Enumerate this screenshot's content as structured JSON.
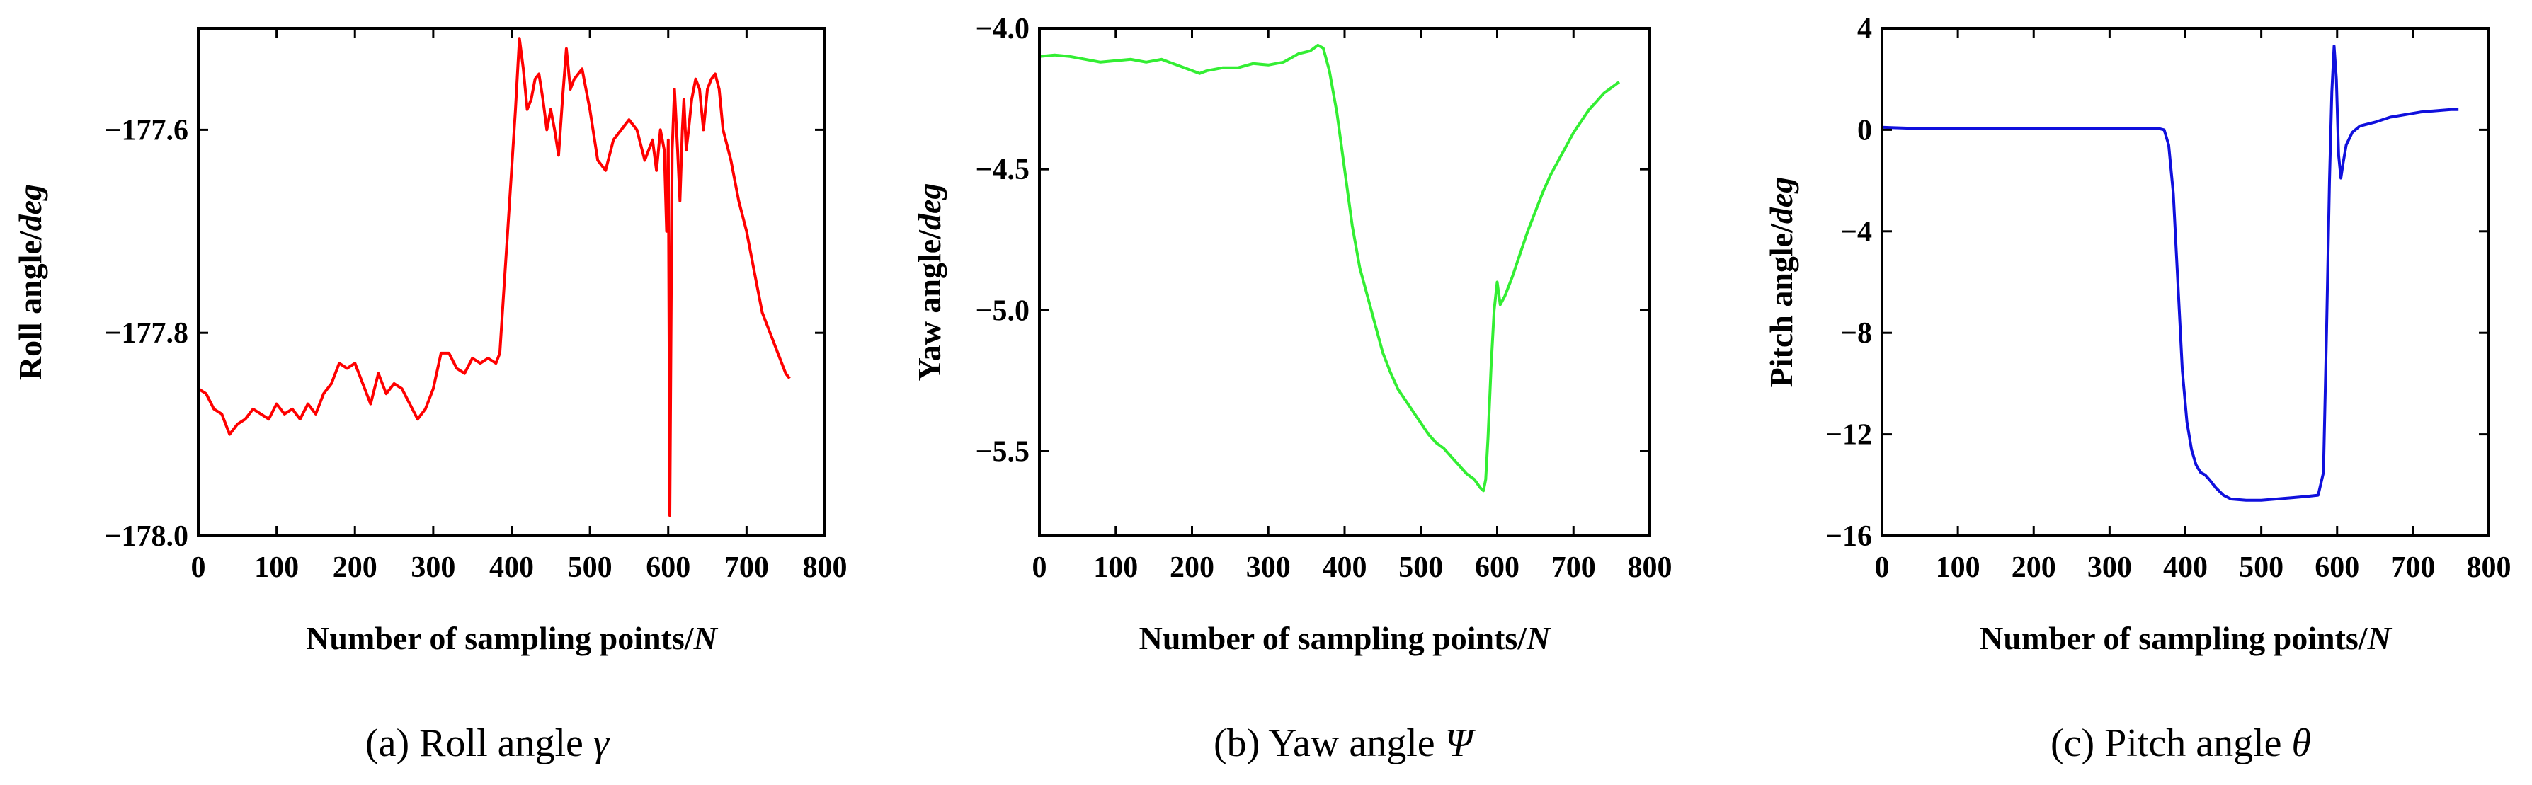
{
  "chart_data": [
    {
      "type": "line",
      "caption": {
        "prefix": "(a)  Roll angle ",
        "symbol": "γ"
      },
      "ylabel": {
        "main": "Roll angle/",
        "unit": "deg"
      },
      "xlabel": {
        "main": "Number of sampling points/",
        "unit": "N"
      },
      "xlim": [
        0,
        800
      ],
      "ylim": [
        -178.0,
        -177.5
      ],
      "xticks": [
        0,
        100,
        200,
        300,
        400,
        500,
        600,
        700,
        800
      ],
      "xtick_labels": [
        "0",
        "100",
        "200",
        "300",
        "400",
        "500",
        "600",
        "700",
        "800"
      ],
      "yticks": [
        -178.0,
        -177.8,
        -177.6
      ],
      "ytick_labels": [
        "−178.0",
        "−177.8",
        "−177.6"
      ],
      "color": "#ff0000",
      "series": [
        {
          "name": "Roll angle",
          "x": [
            0,
            10,
            20,
            30,
            40,
            50,
            60,
            70,
            80,
            90,
            100,
            110,
            120,
            130,
            140,
            150,
            160,
            170,
            180,
            190,
            200,
            210,
            220,
            230,
            240,
            250,
            260,
            270,
            280,
            290,
            300,
            310,
            320,
            330,
            340,
            350,
            360,
            370,
            380,
            385,
            390,
            395,
            400,
            405,
            410,
            415,
            420,
            425,
            430,
            435,
            440,
            445,
            450,
            455,
            460,
            465,
            470,
            475,
            480,
            490,
            500,
            510,
            520,
            530,
            540,
            550,
            560,
            570,
            580,
            585,
            590,
            595,
            598,
            600,
            602,
            605,
            608,
            612,
            615,
            618,
            620,
            623,
            626,
            630,
            635,
            640,
            645,
            650,
            655,
            660,
            665,
            670,
            680,
            690,
            700,
            710,
            720,
            730,
            740,
            750,
            755
          ],
          "values": [
            -177.855,
            -177.86,
            -177.875,
            -177.88,
            -177.9,
            -177.89,
            -177.885,
            -177.875,
            -177.88,
            -177.885,
            -177.87,
            -177.88,
            -177.875,
            -177.885,
            -177.87,
            -177.88,
            -177.86,
            -177.85,
            -177.83,
            -177.835,
            -177.83,
            -177.85,
            -177.87,
            -177.84,
            -177.86,
            -177.85,
            -177.855,
            -177.87,
            -177.885,
            -177.875,
            -177.855,
            -177.82,
            -177.82,
            -177.835,
            -177.84,
            -177.825,
            -177.83,
            -177.825,
            -177.83,
            -177.82,
            -177.76,
            -177.7,
            -177.64,
            -177.58,
            -177.51,
            -177.54,
            -177.58,
            -177.57,
            -177.55,
            -177.545,
            -177.57,
            -177.6,
            -177.58,
            -177.6,
            -177.625,
            -177.57,
            -177.52,
            -177.56,
            -177.55,
            -177.54,
            -177.58,
            -177.63,
            -177.64,
            -177.61,
            -177.6,
            -177.59,
            -177.6,
            -177.63,
            -177.61,
            -177.64,
            -177.6,
            -177.62,
            -177.7,
            -177.61,
            -177.98,
            -177.62,
            -177.56,
            -177.62,
            -177.67,
            -177.6,
            -177.57,
            -177.62,
            -177.6,
            -177.57,
            -177.55,
            -177.56,
            -177.6,
            -177.56,
            -177.55,
            -177.545,
            -177.56,
            -177.6,
            -177.63,
            -177.67,
            -177.7,
            -177.74,
            -177.78,
            -177.8,
            -177.82,
            -177.84,
            -177.845
          ]
        }
      ]
    },
    {
      "type": "line",
      "caption": {
        "prefix": "(b)  Yaw angle ",
        "symbol": "Ψ"
      },
      "ylabel": {
        "main": "Yaw angle/",
        "unit": "deg"
      },
      "xlabel": {
        "main": "Number of sampling points/",
        "unit": "N"
      },
      "xlim": [
        0,
        800
      ],
      "ylim": [
        -5.8,
        -4.0
      ],
      "xticks": [
        0,
        100,
        200,
        300,
        400,
        500,
        600,
        700,
        800
      ],
      "xtick_labels": [
        "0",
        "100",
        "200",
        "300",
        "400",
        "500",
        "600",
        "700",
        "800"
      ],
      "yticks": [
        -5.5,
        -5.0,
        -4.5,
        -4.0
      ],
      "ytick_labels": [
        "−5.5",
        "−5.0",
        "−4.5",
        "−4.0"
      ],
      "color": "#33ee33",
      "series": [
        {
          "name": "Yaw angle",
          "x": [
            0,
            20,
            40,
            60,
            80,
            100,
            120,
            140,
            160,
            180,
            200,
            210,
            220,
            240,
            260,
            280,
            300,
            320,
            340,
            355,
            365,
            372,
            380,
            390,
            400,
            410,
            420,
            430,
            440,
            450,
            460,
            470,
            480,
            490,
            500,
            510,
            520,
            530,
            540,
            550,
            560,
            570,
            578,
            582,
            585,
            588,
            592,
            596,
            600,
            604,
            610,
            620,
            630,
            640,
            650,
            660,
            670,
            680,
            690,
            700,
            710,
            720,
            730,
            740,
            750,
            760
          ],
          "values": [
            -4.1,
            -4.095,
            -4.1,
            -4.11,
            -4.12,
            -4.115,
            -4.11,
            -4.12,
            -4.11,
            -4.13,
            -4.15,
            -4.16,
            -4.15,
            -4.14,
            -4.14,
            -4.125,
            -4.13,
            -4.12,
            -4.09,
            -4.08,
            -4.06,
            -4.07,
            -4.15,
            -4.3,
            -4.5,
            -4.7,
            -4.85,
            -4.95,
            -5.05,
            -5.15,
            -5.22,
            -5.28,
            -5.32,
            -5.36,
            -5.4,
            -5.44,
            -5.47,
            -5.49,
            -5.52,
            -5.55,
            -5.58,
            -5.6,
            -5.63,
            -5.64,
            -5.6,
            -5.45,
            -5.2,
            -5.0,
            -4.9,
            -4.98,
            -4.95,
            -4.88,
            -4.8,
            -4.72,
            -4.65,
            -4.58,
            -4.52,
            -4.47,
            -4.42,
            -4.37,
            -4.33,
            -4.29,
            -4.26,
            -4.23,
            -4.21,
            -4.19
          ]
        }
      ]
    },
    {
      "type": "line",
      "caption": {
        "prefix": "(c)  Pitch angle ",
        "symbol": "θ"
      },
      "ylabel": {
        "main": "Pitch angle/",
        "unit": "deg"
      },
      "xlabel": {
        "main": "Number of sampling points/",
        "unit": "N"
      },
      "xlim": [
        0,
        800
      ],
      "ylim": [
        -16,
        4
      ],
      "xticks": [
        0,
        100,
        200,
        300,
        400,
        500,
        600,
        700,
        800
      ],
      "xtick_labels": [
        "0",
        "100",
        "200",
        "300",
        "400",
        "500",
        "600",
        "700",
        "800"
      ],
      "yticks": [
        -16,
        -12,
        -8,
        -4,
        0,
        4
      ],
      "ytick_labels": [
        "−16",
        "−12",
        "−8",
        "−4",
        "0",
        "4"
      ],
      "color": "#1010dd",
      "series": [
        {
          "name": "Pitch angle",
          "x": [
            0,
            50,
            100,
            150,
            200,
            250,
            300,
            350,
            365,
            372,
            378,
            384,
            390,
            396,
            402,
            408,
            414,
            420,
            426,
            432,
            440,
            450,
            460,
            480,
            500,
            520,
            540,
            560,
            575,
            582,
            586,
            590,
            593,
            596,
            599,
            602,
            605,
            608,
            612,
            620,
            630,
            650,
            670,
            690,
            710,
            730,
            750,
            760
          ],
          "values": [
            0.1,
            0.05,
            0.05,
            0.05,
            0.05,
            0.05,
            0.05,
            0.05,
            0.05,
            0.0,
            -0.6,
            -2.5,
            -6.0,
            -9.5,
            -11.5,
            -12.6,
            -13.2,
            -13.5,
            -13.6,
            -13.8,
            -14.1,
            -14.4,
            -14.55,
            -14.6,
            -14.6,
            -14.55,
            -14.5,
            -14.45,
            -14.4,
            -13.5,
            -8.0,
            -2.0,
            1.5,
            3.3,
            2.0,
            -1.0,
            -1.9,
            -1.3,
            -0.6,
            -0.1,
            0.15,
            0.3,
            0.5,
            0.6,
            0.7,
            0.75,
            0.8,
            0.8
          ]
        }
      ]
    }
  ]
}
